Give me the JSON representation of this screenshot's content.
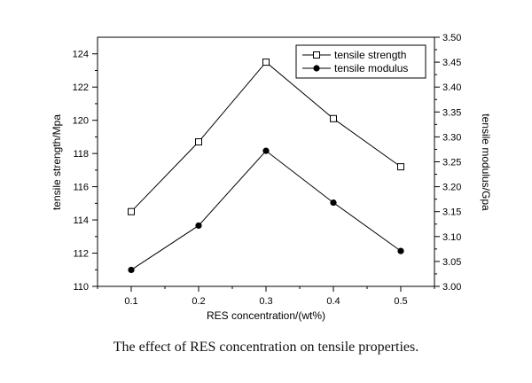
{
  "chart_data": {
    "type": "line",
    "x": [
      0.1,
      0.2,
      0.3,
      0.4,
      0.5
    ],
    "xlabel": "RES concentration/(wt%)",
    "ylabel_left": "tensile strength/Mpa",
    "ylabel_right": "tensile modulus/Gpa",
    "xlim": [
      0.05,
      0.55
    ],
    "ylim_left": [
      110,
      125
    ],
    "ylim_right": [
      3.0,
      3.5
    ],
    "x_ticks": [
      "0.1",
      "0.2",
      "0.3",
      "0.4",
      "0.5"
    ],
    "y_ticks_left": [
      "110",
      "112",
      "114",
      "116",
      "118",
      "120",
      "122",
      "124"
    ],
    "y_ticks_right": [
      "3.00",
      "3.05",
      "3.10",
      "3.15",
      "3.20",
      "3.25",
      "3.30",
      "3.35",
      "3.40",
      "3.45",
      "3.50"
    ],
    "legend_position": "top-right",
    "series": [
      {
        "name": "tensile strength",
        "axis": "left",
        "marker": "open-square",
        "values": [
          114.5,
          118.7,
          123.5,
          120.1,
          117.2
        ]
      },
      {
        "name": "tensile modulus",
        "axis": "right",
        "marker": "filled-circle",
        "values": [
          3.033,
          3.122,
          3.272,
          3.168,
          3.071
        ]
      }
    ]
  },
  "caption": "The effect of RES concentration on tensile properties."
}
